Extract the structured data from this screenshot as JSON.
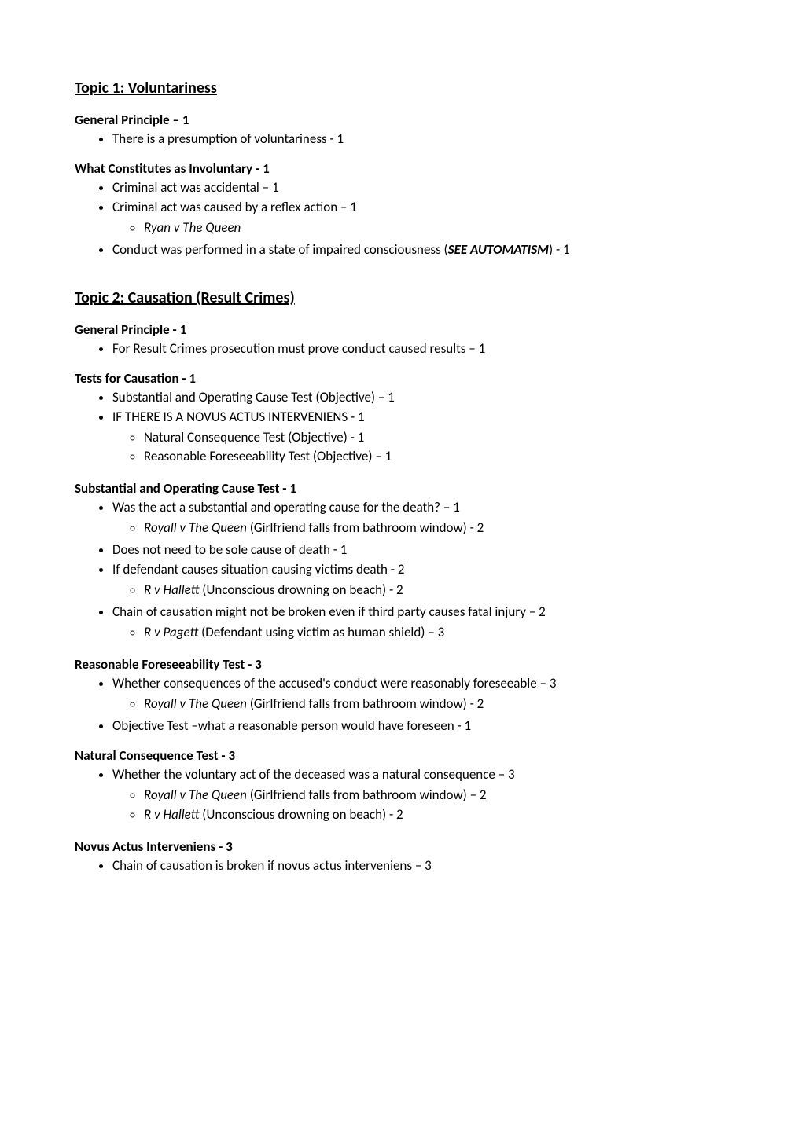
{
  "topic1": {
    "heading": "Topic 1: Voluntariness",
    "sections": {
      "general": {
        "title": "General Principle – 1",
        "items": {
          "i0": "There is a presumption of voluntariness - 1"
        }
      },
      "involuntary": {
        "title": "What Constitutes as Involuntary - 1",
        "items": {
          "i0": "Criminal act was accidental – 1",
          "i1": "Criminal act was caused by a reflex action – 1",
          "i1_sub": {
            "s0": "Ryan v The Queen"
          },
          "i2_pre": "Conduct was performed in a state of impaired consciousness (",
          "i2_bold": "SEE AUTOMATISM",
          "i2_post": ") - 1"
        }
      }
    }
  },
  "topic2": {
    "heading": "Topic 2: Causation (Result Crimes)",
    "sections": {
      "general": {
        "title": "General Principle - 1",
        "items": {
          "i0": "For Result Crimes prosecution must prove conduct caused results – 1"
        }
      },
      "tests": {
        "title": "Tests for Causation - 1",
        "items": {
          "i0": "Substantial and Operating Cause Test (Objective) – 1",
          "i1": "IF THERE  IS A NOVUS ACTUS INTERVENIENS - 1",
          "i1_sub": {
            "s0": "Natural Consequence Test (Objective) - 1",
            "s1": "Reasonable Foreseeability Test (Objective) – 1"
          }
        }
      },
      "substantial": {
        "title": "Substantial and Operating Cause Test - 1",
        "items": {
          "i0": "Was the act a substantial and operating cause for the death? – 1",
          "i0_sub": {
            "s0_italic": "Royall v The Queen",
            "s0_rest": " (Girlfriend falls from bathroom window) - 2"
          },
          "i1": "Does not need to be sole cause of death - 1",
          "i2": "If defendant causes situation causing victims death  - 2",
          "i2_sub": {
            "s0_italic": "R v Hallett",
            "s0_rest": " (Unconscious drowning on beach) - 2"
          },
          "i3": "Chain of causation might not be broken even if third party causes fatal injury – 2",
          "i3_sub": {
            "s0_italic": "R v Pagett",
            "s0_rest": " (Defendant using victim as human shield) – 3"
          }
        }
      },
      "foreseeability": {
        "title": "Reasonable Foreseeability Test - 3",
        "items": {
          "i0": "Whether consequences of the accused's conduct were reasonably foreseeable  – 3",
          "i0_sub": {
            "s0_italic": "Royall v The Queen",
            "s0_rest": " (Girlfriend falls from bathroom window) - 2"
          },
          "i1": "Objective Test –what a reasonable person would have foreseen - 1"
        }
      },
      "natural": {
        "title": "Natural Consequence Test - 3",
        "items": {
          "i0": "Whether the voluntary act of the deceased was a natural consequence – 3",
          "i0_sub": {
            "s0_italic": "Royall v The Queen",
            "s0_rest": " (Girlfriend falls from bathroom window) – 2",
            "s1_italic": "R v Hallett",
            "s1_rest": " (Unconscious drowning on beach) - 2"
          }
        }
      },
      "novus": {
        "title": "Novus Actus Interveniens - 3",
        "items": {
          "i0": "Chain of causation is broken if novus actus interveniens  – 3"
        }
      }
    }
  }
}
